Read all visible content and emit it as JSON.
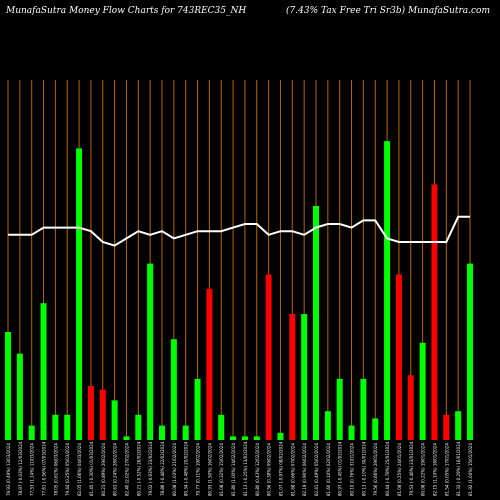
{
  "header": {
    "title_left": "MunafaSutra  Money Flow  Charts for 743REC35_NH",
    "title_right": "(7.43% Tax Free   Tri   Sr3b) MunafaSutra.com"
  },
  "colors": {
    "background": "#000000",
    "up": "#00ff00",
    "down": "#ff0000",
    "grid": "#b8660b",
    "line": "#ffffff"
  },
  "chart_data": {
    "type": "bar",
    "title": "MunafaSutra  Money Flow  Charts for 743REC35_NH",
    "series": [
      {
        "values": [
          30,
          24,
          4,
          38,
          7,
          7,
          81,
          15,
          14,
          11,
          1,
          7,
          49,
          4,
          28,
          4,
          17,
          42,
          7,
          1,
          1,
          1,
          46,
          2,
          35,
          35,
          65,
          8,
          17,
          4,
          17,
          6,
          83,
          46,
          18,
          27,
          71,
          7,
          8,
          49
        ],
        "directions": [
          "up",
          "up",
          "up",
          "up",
          "up",
          "up",
          "up",
          "down",
          "down",
          "up",
          "up",
          "up",
          "up",
          "up",
          "up",
          "up",
          "up",
          "down",
          "up",
          "up",
          "up",
          "up",
          "down",
          "up",
          "down",
          "up",
          "up",
          "up",
          "up",
          "up",
          "up",
          "up",
          "up",
          "down",
          "down",
          "up",
          "down",
          "down",
          "up",
          "up"
        ]
      },
      {
        "values": [
          57,
          57,
          57,
          59,
          59,
          59,
          59,
          58,
          55,
          54,
          56,
          58,
          57,
          58,
          56,
          57,
          58,
          58,
          58,
          59,
          60,
          60,
          57,
          58,
          58,
          57,
          59,
          60,
          60,
          59,
          61,
          61,
          56,
          55,
          55,
          55,
          55,
          55,
          62,
          62
        ]
      }
    ],
    "categories": [
      "79.93 (0.49%) 13/03/2024",
      "78.97 (-0.03%) 12/03/2024",
      "77.53 (1.14%) 11/03/2024",
      "77.61 (-0.56%) 07/03/2024",
      "78.05 (0.61%) 06/03/2024",
      "79.44 (0.25%) 05/03/2024",
      "82.05 (1.06%) 04/03/2024",
      "81.45 (-0.30%) 01/03/2024",
      "80.23 (0.89%) 29/02/2024",
      "80.63 (0.24%) 28/02/2024",
      "82.40 (2.02%) 27/02/2024",
      "80.21 (-0.52%) 26/02/2024",
      "79.02 (-0.93%) 23/02/2024",
      "78.86 (-0.48%) 22/02/2024",
      "80.08 (1.03%) 21/02/2024",
      "80.34 (-0.48%) 20/02/2024",
      "79.77 (0.11%) 19/02/2024",
      "80.93 (1.50%) 16/02/2024",
      "81.08 (0.32%) 15/02/2024",
      "81.80 (1.00%) 14/02/2024",
      "81.13 (-0.25%) 13/02/2024",
      "80.80 (0.43%) 12/02/2024",
      "80.56 (0.38%) 09/02/2024",
      "81.07 (-0.97%) 08/02/2024",
      "81.68 (0.66%) 07/02/2024",
      "82.19 (0.90%) 06/02/2024",
      "82.41 (0.49%) 05/02/2024",
      "81.60 (0.10%) 02/02/2024",
      "80.97 (-0.45%) 01/02/2024",
      "80.10 (0.76%) 31/01/2024",
      "80.13 (-0.10%) 30/01/2024",
      "79.56 (0.66%) 29/01/2024",
      "80.44 (-0.78%) 25/01/2024",
      "81.08 (0.25%) 24/01/2024",
      "79.53 (-0.46%) 23/01/2024",
      "80.08 (0.22%) 19/01/2024",
      "82.15 (1.10%) 18/01/2024",
      "81.54 (0.05%) 17/01/2024",
      "81.32 (-0.29%) 16/01/2024",
      "81.92 (1.04%) 15/01/2024"
    ],
    "xlabel": "",
    "ylabel": "",
    "ylim": [
      0,
      100
    ],
    "grid": true
  }
}
